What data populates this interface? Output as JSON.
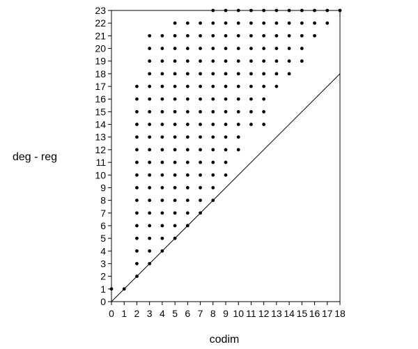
{
  "chart_data": {
    "type": "scatter",
    "title": "",
    "xlabel": "codim",
    "ylabel": "deg - reg",
    "xlim": [
      0,
      18
    ],
    "ylim": [
      0,
      23
    ],
    "xticks": [
      0,
      1,
      2,
      3,
      4,
      5,
      6,
      7,
      8,
      9,
      10,
      11,
      12,
      13,
      14,
      15,
      16,
      17,
      18
    ],
    "yticks": [
      0,
      1,
      2,
      3,
      4,
      5,
      6,
      7,
      8,
      9,
      10,
      11,
      12,
      13,
      14,
      15,
      16,
      17,
      18,
      19,
      20,
      21,
      22,
      23
    ],
    "grid": false,
    "frame": "top-and-right-box",
    "reference_line": {
      "from": [
        0,
        0
      ],
      "to": [
        18,
        18
      ]
    },
    "point_color": "#000000",
    "columns": [
      {
        "x": 0,
        "y_min": 1,
        "y_max": 1
      },
      {
        "x": 1,
        "y_min": 1,
        "y_max": 1
      },
      {
        "x": 2,
        "y_min": 2,
        "y_max": 17
      },
      {
        "x": 3,
        "y_min": 3,
        "y_max": 21
      },
      {
        "x": 4,
        "y_min": 4,
        "y_max": 21
      },
      {
        "x": 5,
        "y_min": 5,
        "y_max": 22
      },
      {
        "x": 6,
        "y_min": 6,
        "y_max": 22
      },
      {
        "x": 7,
        "y_min": 7,
        "y_max": 22
      },
      {
        "x": 8,
        "y_min": 8,
        "y_max": 23
      },
      {
        "x": 9,
        "y_min": 10,
        "y_max": 23
      },
      {
        "x": 10,
        "y_min": 12,
        "y_max": 23
      },
      {
        "x": 11,
        "y_min": 14,
        "y_max": 23
      },
      {
        "x": 12,
        "y_min": 14,
        "y_max": 23
      },
      {
        "x": 13,
        "y_min": 17,
        "y_max": 23
      },
      {
        "x": 14,
        "y_min": 18,
        "y_max": 23
      },
      {
        "x": 15,
        "y_min": 19,
        "y_max": 23
      },
      {
        "x": 16,
        "y_min": 21,
        "y_max": 23
      },
      {
        "x": 17,
        "y_min": 22,
        "y_max": 23
      },
      {
        "x": 18,
        "y_min": 23,
        "y_max": 23
      }
    ]
  }
}
